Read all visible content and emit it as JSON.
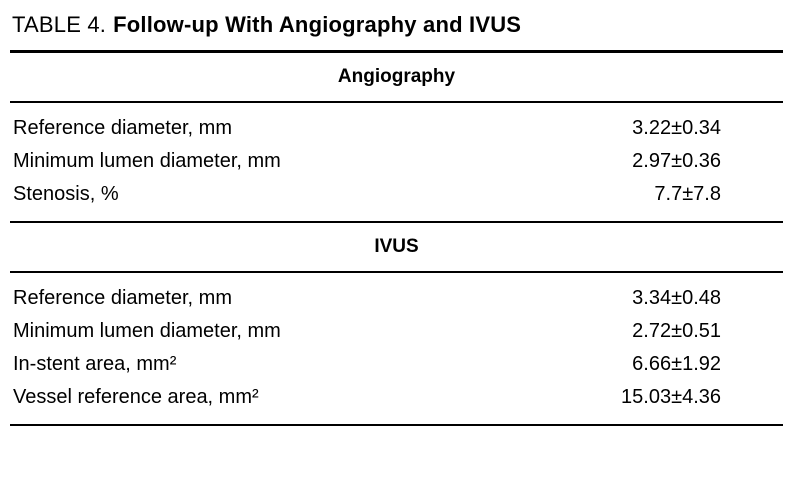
{
  "table": {
    "label": "TABLE 4.",
    "title": "Follow-up With Angiography and IVUS",
    "sections": [
      {
        "header": "Angiography",
        "rows": [
          {
            "label": "Reference diameter, mm",
            "value": "3.22±0.34"
          },
          {
            "label": "Minimum lumen diameter, mm",
            "value": "2.97±0.36"
          },
          {
            "label": "Stenosis, %",
            "value": "7.7±7.8"
          }
        ]
      },
      {
        "header": "IVUS",
        "rows": [
          {
            "label": "Reference diameter, mm",
            "value": "3.34±0.48"
          },
          {
            "label": "Minimum lumen diameter, mm",
            "value": "2.72±0.51"
          },
          {
            "label": "In-stent area, mm²",
            "value": "6.66±1.92"
          },
          {
            "label": "Vessel reference area, mm²",
            "value": "15.03±4.36"
          }
        ]
      }
    ]
  },
  "colors": {
    "background": "#ffffff",
    "text": "#000000",
    "rule": "#000000"
  }
}
